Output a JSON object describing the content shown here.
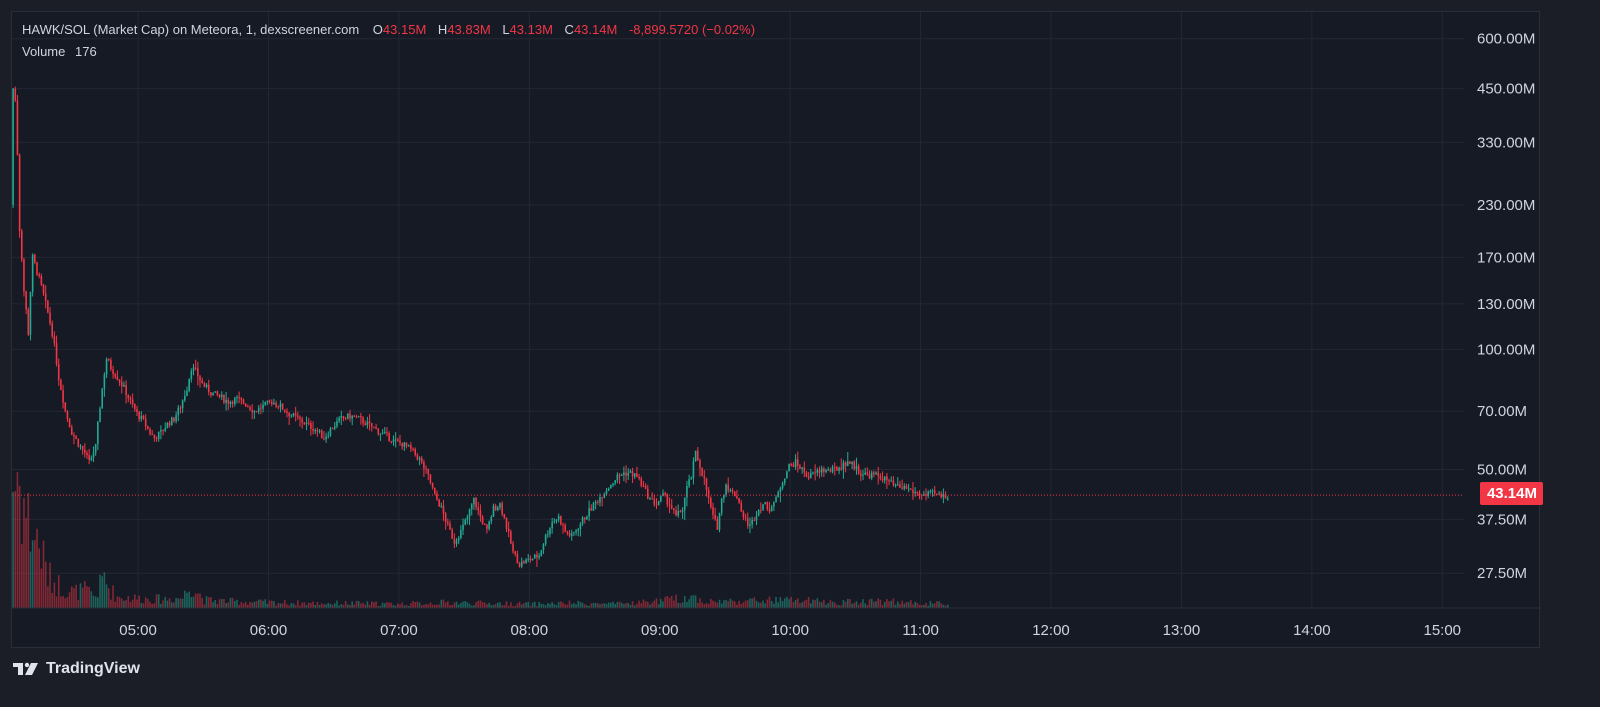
{
  "legend": {
    "symbol": "HAWK/SOL (Market Cap) on Meteora, 1, dexscreener.com",
    "o_label": "O",
    "o_value": "43.15M",
    "h_label": "H",
    "h_value": "43.83M",
    "l_label": "L",
    "l_value": "43.13M",
    "c_label": "C",
    "c_value": "43.14M",
    "change": "-8,899.5720 (−0.02%)",
    "volume_label": "Volume",
    "volume_value": "176"
  },
  "last_price_tag": "43.14M",
  "brand": {
    "name": "TradingView",
    "logo_icon": "tradingview-logo-icon"
  },
  "colors": {
    "up": "#22ab94",
    "down": "#f23645",
    "background": "#161a25",
    "grid": "#232733"
  },
  "chart_data": {
    "type": "candlestick",
    "y_scale": "log",
    "y_ticks": [
      {
        "label": "600.00M",
        "value": 600
      },
      {
        "label": "450.00M",
        "value": 450
      },
      {
        "label": "330.00M",
        "value": 330
      },
      {
        "label": "230.00M",
        "value": 230
      },
      {
        "label": "170.00M",
        "value": 170
      },
      {
        "label": "130.00M",
        "value": 130
      },
      {
        "label": "100.00M",
        "value": 100
      },
      {
        "label": "70.00M",
        "value": 70
      },
      {
        "label": "50.00M",
        "value": 50
      },
      {
        "label": "37.50M",
        "value": 37.5
      },
      {
        "label": "27.50M",
        "value": 27.5
      }
    ],
    "x_ticks": [
      {
        "label": "05:00",
        "value": 300
      },
      {
        "label": "06:00",
        "value": 360
      },
      {
        "label": "07:00",
        "value": 420
      },
      {
        "label": "08:00",
        "value": 480
      },
      {
        "label": "09:00",
        "value": 540
      },
      {
        "label": "10:00",
        "value": 600
      },
      {
        "label": "11:00",
        "value": 660
      },
      {
        "label": "12:00",
        "value": 720
      },
      {
        "label": "13:00",
        "value": 780
      },
      {
        "label": "14:00",
        "value": 840
      },
      {
        "label": "15:00",
        "value": 900
      }
    ],
    "x_range": [
      242,
      910
    ],
    "y_range": [
      22.5,
      700
    ],
    "last_close": 43.14,
    "series_path": [
      [
        242,
        230
      ],
      [
        243,
        450
      ],
      [
        244,
        420
      ],
      [
        246,
        200
      ],
      [
        248,
        140
      ],
      [
        250,
        110
      ],
      [
        252,
        170
      ],
      [
        255,
        150
      ],
      [
        258,
        130
      ],
      [
        261,
        110
      ],
      [
        264,
        85
      ],
      [
        267,
        70
      ],
      [
        270,
        62
      ],
      [
        273,
        58
      ],
      [
        276,
        55
      ],
      [
        278,
        52
      ],
      [
        281,
        57
      ],
      [
        283,
        72
      ],
      [
        286,
        95
      ],
      [
        288,
        90
      ],
      [
        291,
        85
      ],
      [
        294,
        80
      ],
      [
        297,
        74
      ],
      [
        300,
        69
      ],
      [
        303,
        66
      ],
      [
        305,
        63
      ],
      [
        308,
        60
      ],
      [
        311,
        62
      ],
      [
        314,
        65
      ],
      [
        317,
        67
      ],
      [
        320,
        72
      ],
      [
        323,
        80
      ],
      [
        325,
        90
      ],
      [
        327,
        88
      ],
      [
        330,
        82
      ],
      [
        334,
        78
      ],
      [
        338,
        76
      ],
      [
        342,
        74
      ],
      [
        346,
        75
      ],
      [
        350,
        73
      ],
      [
        354,
        70
      ],
      [
        358,
        72
      ],
      [
        362,
        74
      ],
      [
        366,
        72
      ],
      [
        370,
        69
      ],
      [
        374,
        67
      ],
      [
        378,
        65
      ],
      [
        382,
        63
      ],
      [
        386,
        60
      ],
      [
        390,
        64
      ],
      [
        394,
        67
      ],
      [
        398,
        68
      ],
      [
        402,
        67
      ],
      [
        406,
        65
      ],
      [
        410,
        63
      ],
      [
        414,
        61
      ],
      [
        418,
        59
      ],
      [
        422,
        58
      ],
      [
        426,
        56
      ],
      [
        430,
        53
      ],
      [
        434,
        48
      ],
      [
        437,
        43
      ],
      [
        440,
        40
      ],
      [
        443,
        36
      ],
      [
        446,
        33
      ],
      [
        449,
        35
      ],
      [
        452,
        38
      ],
      [
        455,
        42
      ],
      [
        458,
        38
      ],
      [
        461,
        35
      ],
      [
        464,
        40
      ],
      [
        467,
        41
      ],
      [
        470,
        36
      ],
      [
        473,
        31
      ],
      [
        476,
        29
      ],
      [
        479,
        29.5
      ],
      [
        482,
        30
      ],
      [
        485,
        30.5
      ],
      [
        488,
        34
      ],
      [
        491,
        37
      ],
      [
        494,
        38
      ],
      [
        497,
        35
      ],
      [
        500,
        34
      ],
      [
        503,
        36
      ],
      [
        506,
        38
      ],
      [
        509,
        40
      ],
      [
        512,
        42
      ],
      [
        515,
        44
      ],
      [
        518,
        46
      ],
      [
        521,
        48
      ],
      [
        524,
        49
      ],
      [
        527,
        49
      ],
      [
        530,
        48
      ],
      [
        533,
        45
      ],
      [
        536,
        42
      ],
      [
        539,
        41
      ],
      [
        542,
        43
      ],
      [
        545,
        41
      ],
      [
        548,
        38
      ],
      [
        551,
        40
      ],
      [
        553,
        45
      ],
      [
        555,
        48
      ],
      [
        557,
        55
      ],
      [
        559,
        51
      ],
      [
        561,
        47
      ],
      [
        563,
        42
      ],
      [
        565,
        38
      ],
      [
        567,
        36
      ],
      [
        569,
        42
      ],
      [
        571,
        46
      ],
      [
        573,
        44
      ],
      [
        576,
        43
      ],
      [
        579,
        38
      ],
      [
        582,
        36
      ],
      [
        585,
        39
      ],
      [
        588,
        41
      ],
      [
        591,
        40
      ],
      [
        594,
        42
      ],
      [
        597,
        47
      ],
      [
        600,
        51
      ],
      [
        603,
        52
      ],
      [
        606,
        50
      ],
      [
        609,
        48
      ],
      [
        612,
        49
      ],
      [
        615,
        50
      ],
      [
        618,
        49.5
      ],
      [
        621,
        50
      ],
      [
        624,
        51
      ],
      [
        627,
        52.5
      ],
      [
        630,
        51
      ],
      [
        633,
        49
      ],
      [
        636,
        48.5
      ],
      [
        639,
        48.5
      ],
      [
        642,
        48
      ],
      [
        645,
        47
      ],
      [
        648,
        45.5
      ],
      [
        651,
        45
      ],
      [
        654,
        45
      ],
      [
        657,
        44
      ],
      [
        660,
        43.5
      ],
      [
        663,
        43
      ],
      [
        666,
        43.5
      ],
      [
        669,
        43
      ],
      [
        672,
        43
      ]
    ],
    "volume_profile": [
      [
        242,
        155
      ],
      [
        244,
        170
      ],
      [
        246,
        140
      ],
      [
        248,
        120
      ],
      [
        250,
        100
      ],
      [
        252,
        90
      ],
      [
        254,
        80
      ],
      [
        256,
        60
      ],
      [
        258,
        40
      ],
      [
        260,
        35
      ],
      [
        265,
        25
      ],
      [
        270,
        20
      ],
      [
        275,
        22
      ],
      [
        280,
        15
      ],
      [
        284,
        40
      ],
      [
        286,
        25
      ],
      [
        290,
        14
      ],
      [
        300,
        12
      ],
      [
        310,
        11
      ],
      [
        320,
        13
      ],
      [
        324,
        30
      ],
      [
        330,
        10
      ],
      [
        345,
        8
      ],
      [
        360,
        7
      ],
      [
        380,
        6
      ],
      [
        400,
        6
      ],
      [
        420,
        5
      ],
      [
        440,
        7
      ],
      [
        460,
        6
      ],
      [
        480,
        5
      ],
      [
        500,
        6
      ],
      [
        520,
        5
      ],
      [
        540,
        9
      ],
      [
        555,
        14
      ],
      [
        560,
        8
      ],
      [
        580,
        9
      ],
      [
        600,
        10
      ],
      [
        620,
        7
      ],
      [
        640,
        9
      ],
      [
        660,
        6
      ],
      [
        680,
        5
      ],
      [
        700,
        4
      ],
      [
        720,
        3
      ],
      [
        740,
        3
      ],
      [
        760,
        3
      ]
    ]
  }
}
